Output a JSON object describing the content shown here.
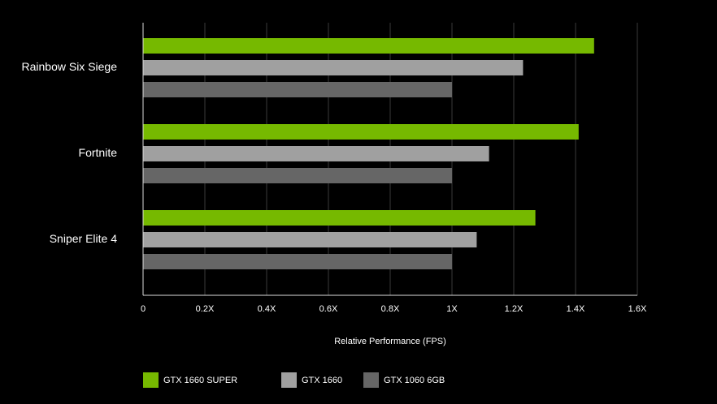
{
  "chart_data": {
    "type": "hbar",
    "categories": [
      "Rainbow Six Siege",
      "Fortnite",
      "Sniper Elite 4"
    ],
    "series": [
      {
        "name": "GTX 1660 SUPER",
        "color": "#76b900",
        "values": [
          1.46,
          1.41,
          1.27
        ]
      },
      {
        "name": "GTX 1660",
        "color": "#a0a0a0",
        "values": [
          1.23,
          1.12,
          1.08
        ]
      },
      {
        "name": "GTX 1060 6GB",
        "color": "#666666",
        "values": [
          1.0,
          1.0,
          1.0
        ]
      }
    ],
    "xlabel": "Relative Performance (FPS)",
    "xlim": [
      0,
      1.6
    ],
    "xticks": [
      0,
      {
        "value": 0.2,
        "label": "0.2X"
      },
      {
        "value": 0.4,
        "label": "0.4X"
      },
      {
        "value": 0.6,
        "label": "0.6X"
      },
      {
        "value": 0.8,
        "label": "0.8X"
      },
      {
        "value": 1,
        "label": "1X"
      },
      {
        "value": 1.2,
        "label": "1.2X"
      },
      {
        "value": 1.4,
        "label": "1.4X"
      },
      {
        "value": 1.6,
        "label": "1.6X"
      }
    ],
    "grid": true
  }
}
